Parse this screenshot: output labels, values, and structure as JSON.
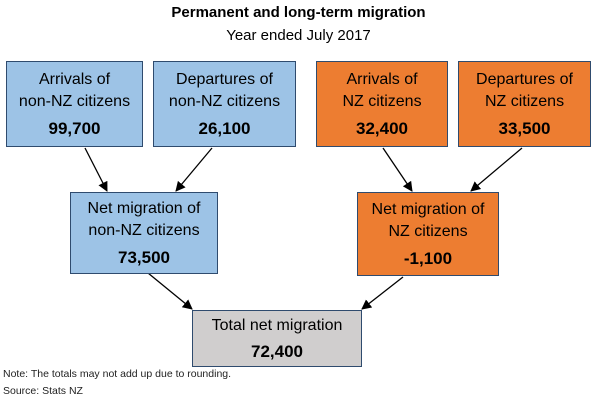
{
  "title": "Permanent and long-term migration",
  "subtitle": "Year ended July 2017",
  "boxes": {
    "arrivals_non_nz": {
      "line1": "Arrivals of",
      "line2": "non-NZ citizens",
      "value": "99,700"
    },
    "departures_non_nz": {
      "line1": "Departures of",
      "line2": "non-NZ citizens",
      "value": "26,100"
    },
    "arrivals_nz": {
      "line1": "Arrivals of",
      "line2": "NZ citizens",
      "value": "32,400"
    },
    "departures_nz": {
      "line1": "Departures of",
      "line2": "NZ citizens",
      "value": "33,500"
    },
    "net_non_nz": {
      "line1": "Net migration of",
      "line2": "non-NZ citizens",
      "value": "73,500"
    },
    "net_nz": {
      "line1": "Net migration of",
      "line2": "NZ citizens",
      "value": "-1,100"
    },
    "total": {
      "line1": "Total net migration",
      "value": "72,400"
    }
  },
  "colors": {
    "non_nz": "#9dc3e6",
    "nz": "#ed7d31",
    "total": "#d0cece",
    "border": "#2f4b6e"
  },
  "note": "Note: The totals may not add up due to rounding.",
  "source": "Source: Stats NZ"
}
